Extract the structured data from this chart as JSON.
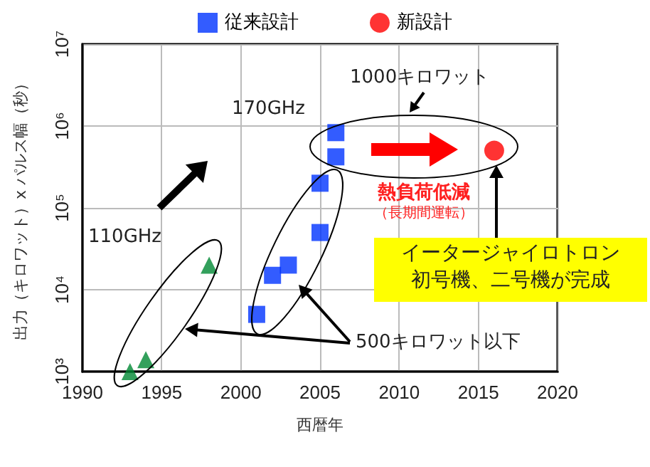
{
  "chart_data": {
    "type": "scatter",
    "xlabel": "西暦年",
    "ylabel": "出力（キロワット）x パルス幅（秒）",
    "xlim": [
      1990,
      2020
    ],
    "xticks": [
      1990,
      1995,
      2000,
      2005,
      2010,
      2015,
      2020
    ],
    "ylim": [
      1000,
      10000000
    ],
    "yticks": [
      {
        "value": 1000,
        "label": "10³"
      },
      {
        "value": 10000,
        "label": "10⁴"
      },
      {
        "value": 100000,
        "label": "10⁵"
      },
      {
        "value": 1000000,
        "label": "10⁶"
      },
      {
        "value": 10000000,
        "label": "10⁷"
      }
    ],
    "log": true,
    "grid": true,
    "legend": "top",
    "series": [
      {
        "name": "従来設計",
        "color": "#0033ff",
        "marker": "square",
        "x": [
          2001,
          2002,
          2003,
          2005,
          2005,
          2006,
          2006
        ],
        "values": [
          5000,
          15000,
          20000,
          50000,
          200000,
          420000,
          830000
        ]
      },
      {
        "name": "新設計",
        "color": "#ff0000",
        "marker": "circle",
        "x": [
          2016
        ],
        "values": [
          500000
        ]
      },
      {
        "color": "#008833",
        "marker": "triangle",
        "x": [
          1993,
          1994,
          1998
        ],
        "values": [
          1000,
          1400,
          20000
        ]
      }
    ],
    "annotations": [
      "170GHz",
      "110GHz",
      "1000キロワット",
      "熱負荷低減",
      "（長期間運転）",
      "イータージャイロトロン",
      "初号機、二号機が完成",
      "500キロワット以下"
    ]
  }
}
